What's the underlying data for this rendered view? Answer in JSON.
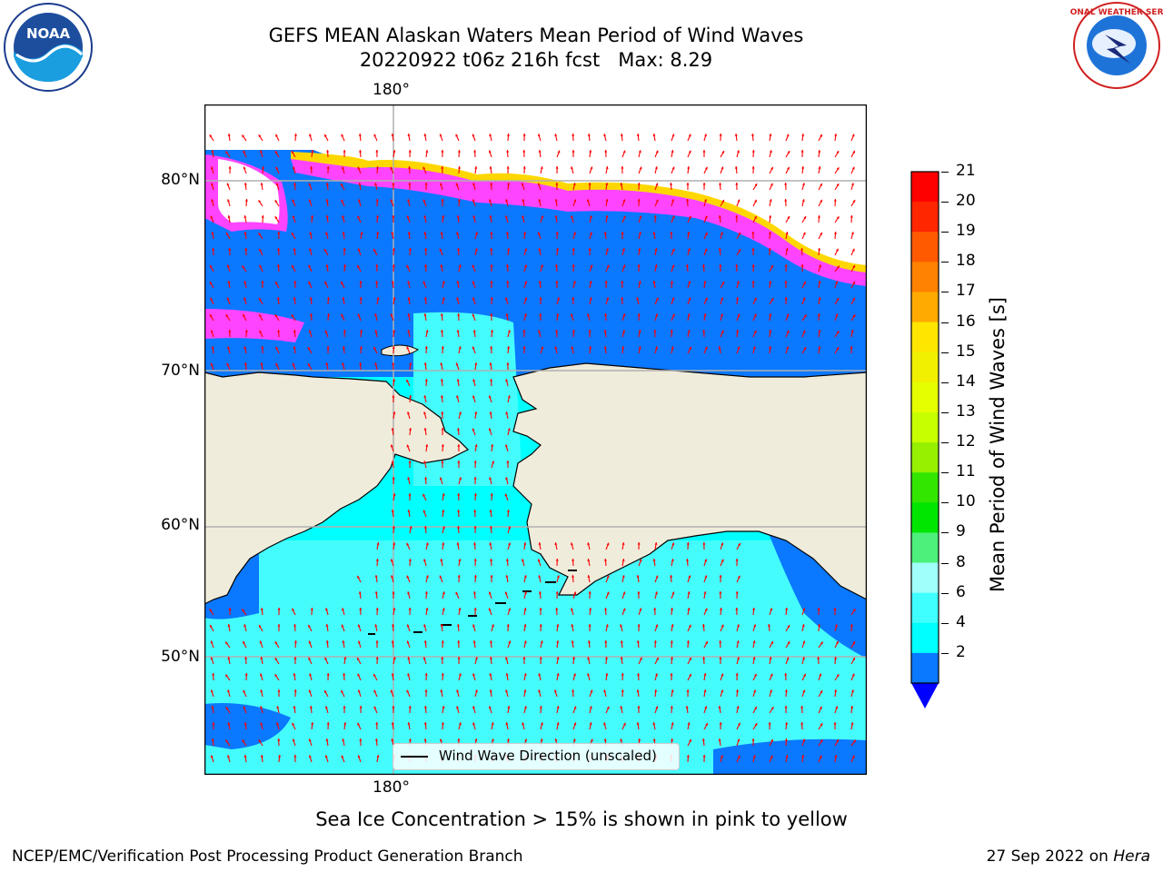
{
  "title": {
    "line1": "GEFS MEAN Alaskan Waters Mean Period of Wind Waves",
    "line2": "20220922 t06z 216h fcst   Max: 8.29"
  },
  "map": {
    "lon_labels": [
      "180°",
      "180°"
    ],
    "lat_labels": [
      "80°N",
      "70°N",
      "60°N",
      "50°N"
    ],
    "legend_text": "Wind Wave Direction (unscaled)",
    "colors": {
      "land": "#efecdb",
      "ocean_low": "#0a78ff",
      "ocean_mid": "#00ffff",
      "ocean_high": "#45fcfc",
      "arrow": "#ff0000",
      "ice_pink": "#ff44ff",
      "ice_yellow": "#ffd700"
    }
  },
  "colorbar": {
    "label": "Mean Period of Wind Waves [s]",
    "ticks": [
      "21",
      "20",
      "19",
      "18",
      "17",
      "16",
      "15",
      "14",
      "13",
      "12",
      "11",
      "10",
      "9",
      "8",
      "6",
      "4",
      "2"
    ],
    "colors": [
      "#ff0000",
      "#ff2600",
      "#ff5a00",
      "#ff8200",
      "#ffaa00",
      "#ffe600",
      "#f0f000",
      "#e6ff00",
      "#c8ff00",
      "#96f000",
      "#32e600",
      "#00e600",
      "#4cf07a",
      "#a0fffa",
      "#40ffff",
      "#00ffff",
      "#0a78ff"
    ],
    "under_color": "#0000ff"
  },
  "note": "Sea Ice Concentration > 15% is shown in pink to yellow",
  "footer": {
    "left": "NCEP/EMC/Verification Post Processing Product Generation Branch",
    "right_date": "27 Sep 2022 on ",
    "right_host": "Hera"
  },
  "logos": {
    "noaa_text": "NOAA",
    "nws_text": "NATIONAL WEATHER SERVICE"
  }
}
